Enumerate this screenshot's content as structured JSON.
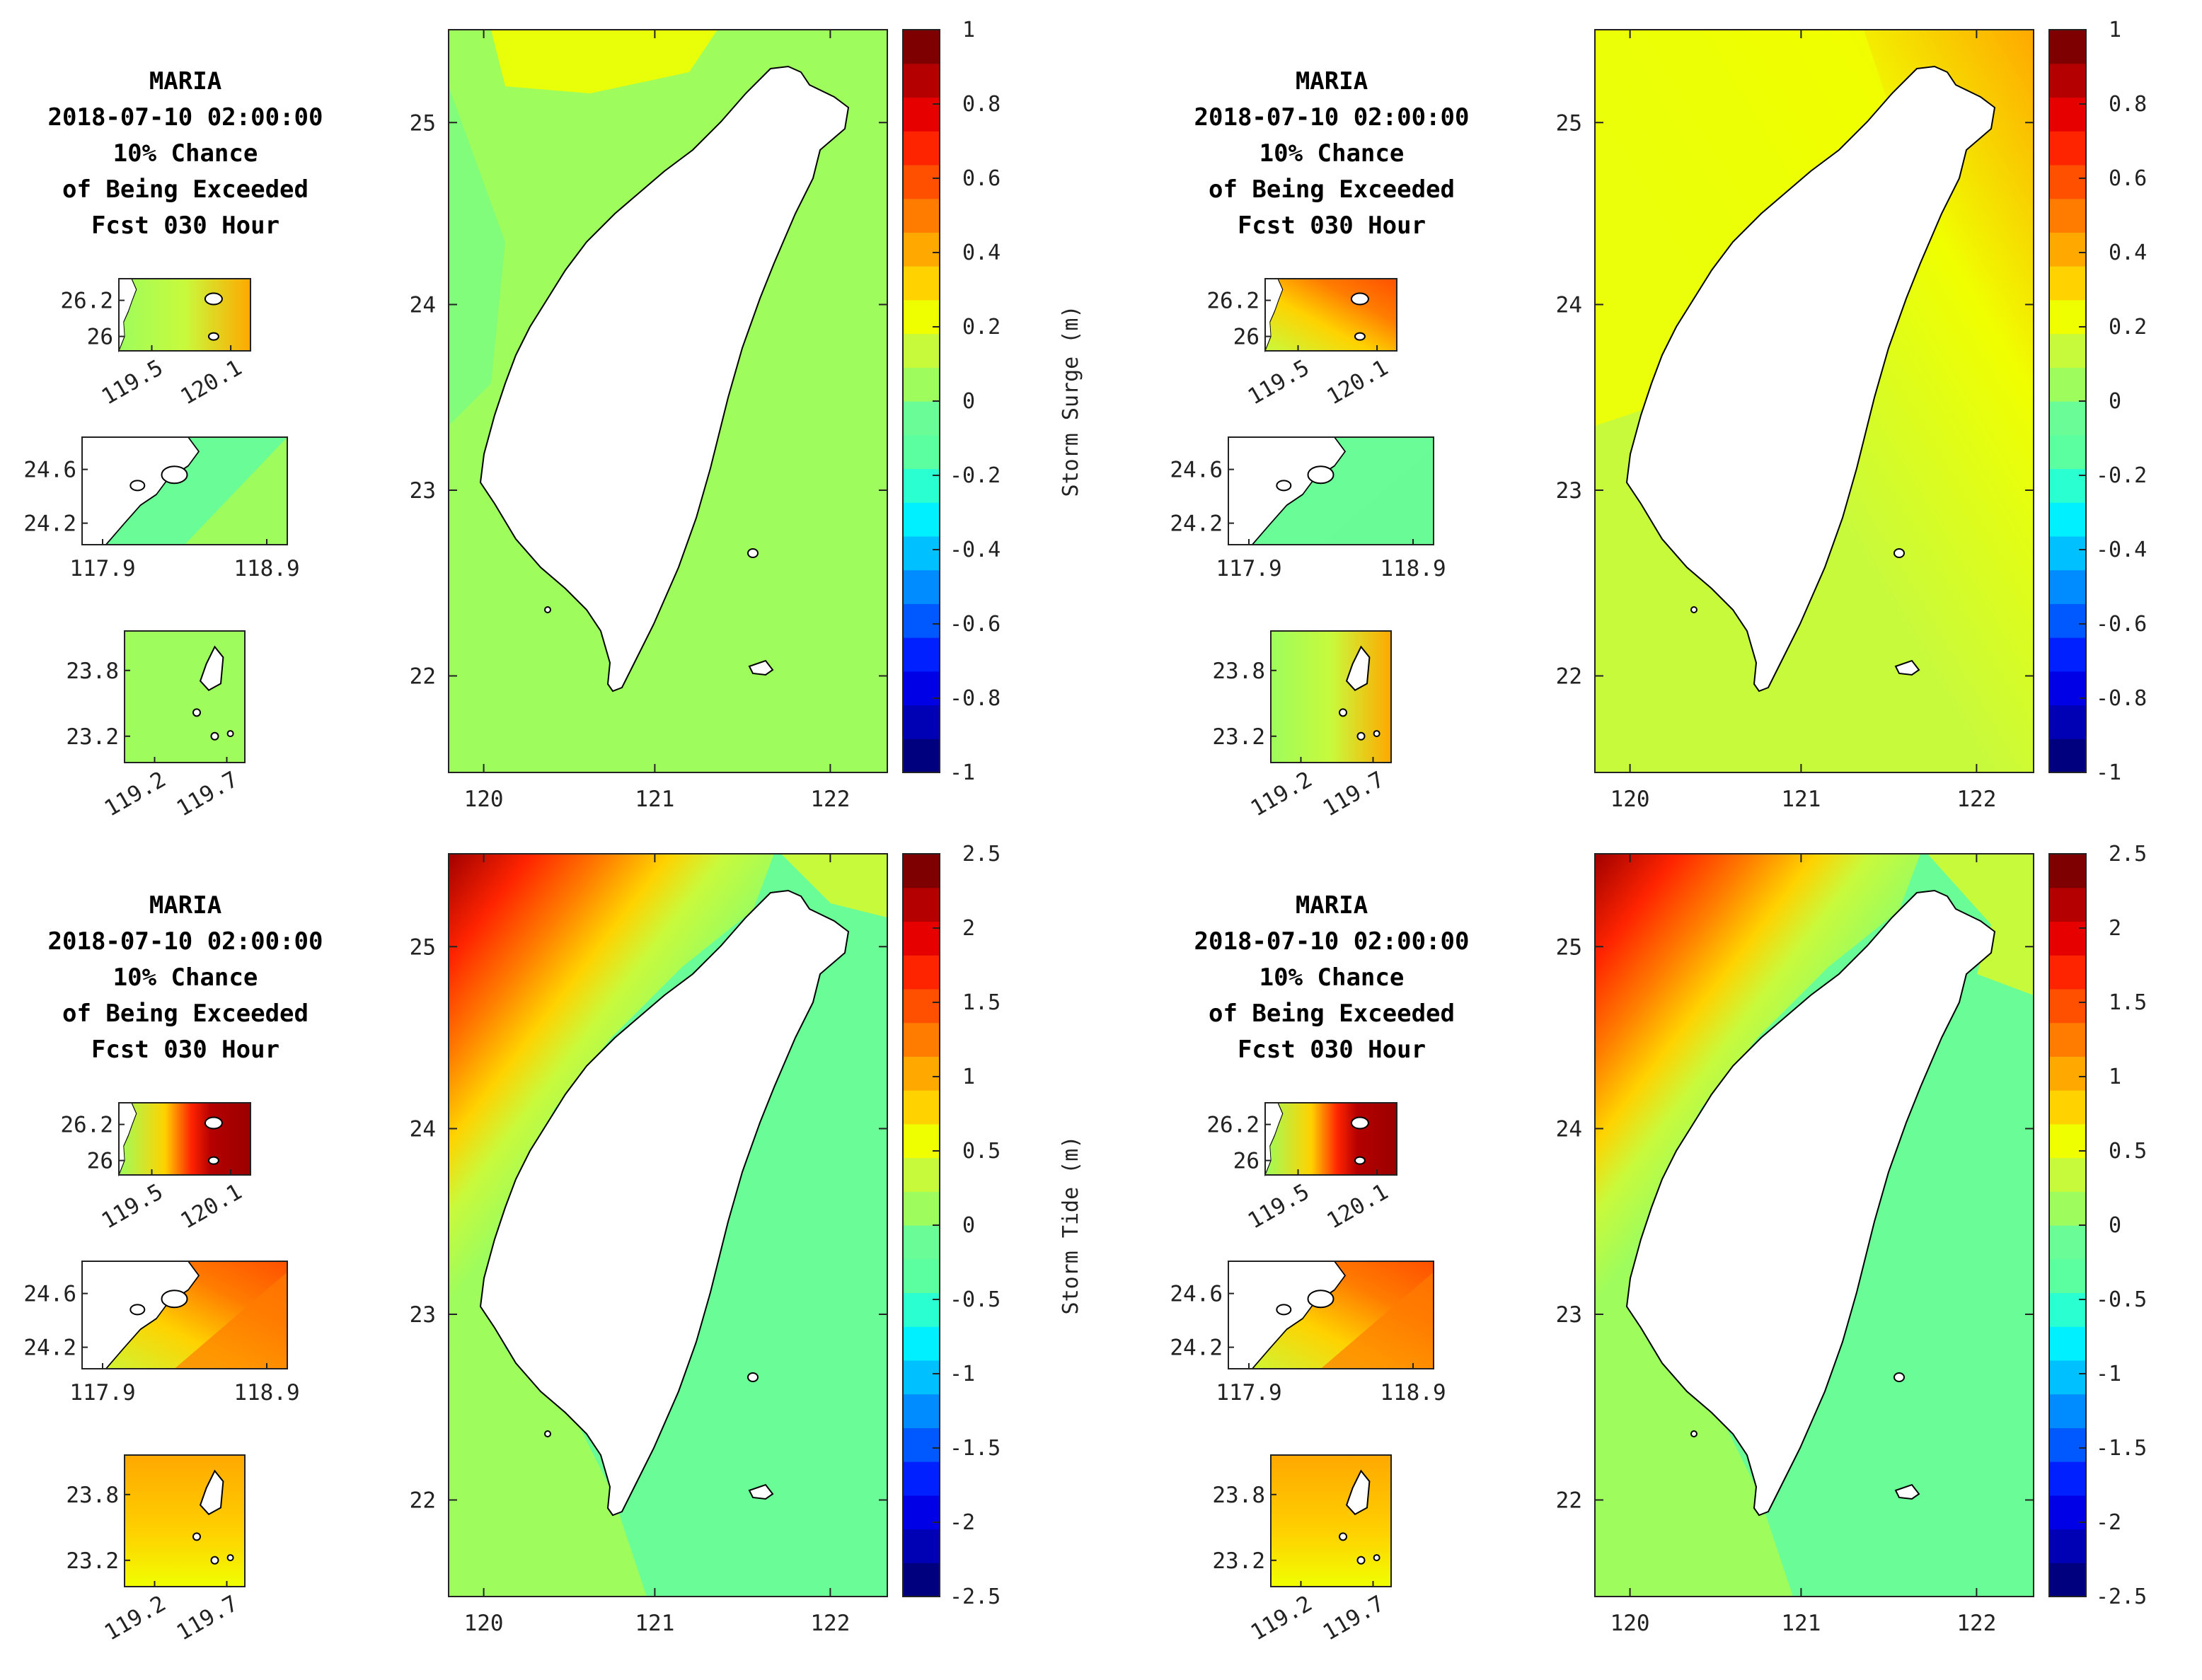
{
  "panels": [
    {
      "title_lines": [
        "MARIA",
        "2018-07-10 02:00:00",
        "10% Chance",
        "of Being Exceeded",
        "Fcst 030 Hour"
      ],
      "colorbar": {
        "label": "Storm Surge (m)",
        "ticks": [
          "1",
          "0.8",
          "0.6",
          "0.4",
          "0.2",
          "0",
          "-0.2",
          "-0.4",
          "-0.6",
          "-0.8",
          "-1"
        ],
        "min": -1,
        "max": 1
      },
      "map": {
        "background_color": "#9efc5c",
        "xticks": [
          "120",
          "121",
          "122"
        ],
        "yticks": [
          "25",
          "24",
          "23",
          "22"
        ]
      },
      "insets": [
        {
          "name": "matsu",
          "xticks": [
            "119.5",
            "120.1"
          ],
          "yticks": [
            "26.2",
            "26"
          ]
        },
        {
          "name": "kinmen",
          "xticks": [
            "117.9",
            "118.9"
          ],
          "yticks": [
            "24.6",
            "24.2"
          ]
        },
        {
          "name": "penghu",
          "xticks": [
            "119.2",
            "119.7"
          ],
          "yticks": [
            "23.8",
            "23.2"
          ]
        }
      ]
    },
    {
      "title_lines": [
        "MARIA",
        "2018-07-10 02:00:00",
        "10% Chance",
        "of Being Exceeded",
        "Fcst 030 Hour"
      ],
      "colorbar": {
        "label": "Storm Surge (m)",
        "ticks": [
          "1",
          "0.8",
          "0.6",
          "0.4",
          "0.2",
          "0",
          "-0.2",
          "-0.4",
          "-0.6",
          "-0.8",
          "-1"
        ],
        "min": -1,
        "max": 1
      },
      "map": {
        "background_color": "#c8fa3c",
        "xticks": [
          "120",
          "121",
          "122"
        ],
        "yticks": [
          "25",
          "24",
          "23",
          "22"
        ]
      },
      "insets": [
        {
          "name": "matsu",
          "xticks": [
            "119.5",
            "120.1"
          ],
          "yticks": [
            "26.2",
            "26"
          ]
        },
        {
          "name": "kinmen",
          "xticks": [
            "117.9",
            "118.9"
          ],
          "yticks": [
            "24.6",
            "24.2"
          ]
        },
        {
          "name": "penghu",
          "xticks": [
            "119.2",
            "119.7"
          ],
          "yticks": [
            "23.8",
            "23.2"
          ]
        }
      ]
    },
    {
      "title_lines": [
        "MARIA",
        "2018-07-10 02:00:00",
        "10% Chance",
        "of Being Exceeded",
        "Fcst 030 Hour"
      ],
      "colorbar": {
        "label": "Storm Tide (m)",
        "ticks": [
          "2.5",
          "2",
          "1.5",
          "1",
          "0.5",
          "0",
          "-0.5",
          "-1",
          "-1.5",
          "-2",
          "-2.5"
        ],
        "min": -2.5,
        "max": 2.5
      },
      "map": {
        "background_color": "#6afc96",
        "xticks": [
          "120",
          "121",
          "122"
        ],
        "yticks": [
          "25",
          "24",
          "23",
          "22"
        ]
      },
      "insets": [
        {
          "name": "matsu",
          "xticks": [
            "119.5",
            "120.1"
          ],
          "yticks": [
            "26.2",
            "26"
          ]
        },
        {
          "name": "kinmen",
          "xticks": [
            "117.9",
            "118.9"
          ],
          "yticks": [
            "24.6",
            "24.2"
          ]
        },
        {
          "name": "penghu",
          "xticks": [
            "119.2",
            "119.7"
          ],
          "yticks": [
            "23.8",
            "23.2"
          ]
        }
      ]
    },
    {
      "title_lines": [
        "MARIA",
        "2018-07-10 02:00:00",
        "10% Chance",
        "of Being Exceeded",
        "Fcst 030 Hour"
      ],
      "colorbar": {
        "label": "Storm Tide (m)",
        "ticks": [
          "2.5",
          "2",
          "1.5",
          "1",
          "0.5",
          "0",
          "-0.5",
          "-1",
          "-1.5",
          "-2",
          "-2.5"
        ],
        "min": -2.5,
        "max": 2.5
      },
      "map": {
        "background_color": "#6afc96",
        "xticks": [
          "120",
          "121",
          "122"
        ],
        "yticks": [
          "25",
          "24",
          "23",
          "22"
        ]
      },
      "insets": [
        {
          "name": "matsu",
          "xticks": [
            "119.5",
            "120.1"
          ],
          "yticks": [
            "26.2",
            "26"
          ]
        },
        {
          "name": "kinmen",
          "xticks": [
            "117.9",
            "118.9"
          ],
          "yticks": [
            "24.6",
            "24.2"
          ]
        },
        {
          "name": "penghu",
          "xticks": [
            "119.2",
            "119.7"
          ],
          "yticks": [
            "23.8",
            "23.2"
          ]
        }
      ]
    }
  ],
  "colormap": [
    "#00007f",
    "#0000b4",
    "#0000e6",
    "#0020ff",
    "#0058ff",
    "#008cff",
    "#00c0ff",
    "#00f0ff",
    "#2affd2",
    "#5cffa0",
    "#6afc96",
    "#9efc5c",
    "#c8fa3c",
    "#f0ff00",
    "#ffd200",
    "#ffa800",
    "#ff7c00",
    "#ff5000",
    "#ff2400",
    "#e60000",
    "#b40000",
    "#7f0000"
  ],
  "land_color": "#ffffff",
  "coast_color": "#000000"
}
